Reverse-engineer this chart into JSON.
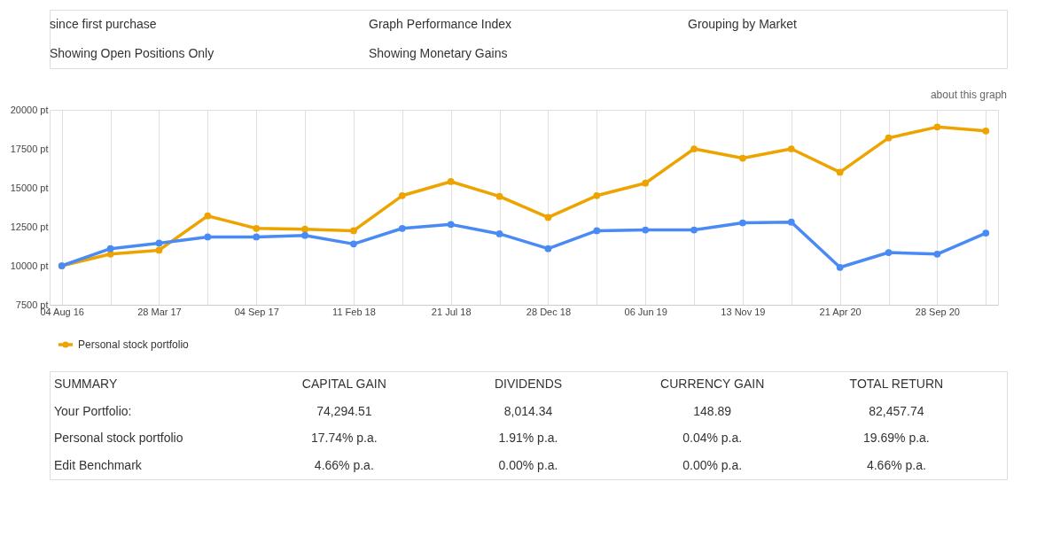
{
  "chart_data": [
    {
      "type": "other",
      "annotations": [
        "since first purchase",
        "Graph Performance Index",
        "Grouping by Market",
        "Showing Open Positions Only",
        "Showing Monetary Gains"
      ]
    },
    {
      "type": "line",
      "categories": [
        "04 Aug 16",
        null,
        "28 Mar 17",
        null,
        "04 Sep 17",
        null,
        "11 Feb 18",
        null,
        "21 Jul 18",
        null,
        "28 Dec 18",
        null,
        "06 Jun 19",
        null,
        "13 Nov 19",
        null,
        "21 Apr 20",
        null,
        "28 Sep 20",
        null
      ],
      "series": [
        {
          "name": "Personal stock portfolio",
          "color": "#eea400",
          "values": [
            10000,
            10750,
            11000,
            13200,
            12400,
            12350,
            12250,
            14500,
            15400,
            14450,
            13100,
            14500,
            15300,
            17500,
            16900,
            17500,
            16000,
            18200,
            18900,
            18650
          ]
        },
        {
          "color": "#4a8af4",
          "values": [
            10000,
            11100,
            11450,
            11850,
            11850,
            11950,
            11400,
            12400,
            12650,
            12050,
            11100,
            12250,
            12300,
            12300,
            12750,
            12800,
            9900,
            10850,
            10750,
            12100
          ]
        }
      ],
      "ylim": [
        7500,
        20000
      ],
      "yticks": [
        {
          "value": 7500,
          "label": "7500 pt"
        },
        {
          "value": 10000,
          "label": "10000 pt"
        },
        {
          "value": 12500,
          "label": "12500 pt"
        },
        {
          "value": 15000,
          "label": "15000 pt"
        },
        {
          "value": 17500,
          "label": "17500 pt"
        },
        {
          "value": 20000,
          "label": "20000 pt"
        }
      ],
      "grid": "x",
      "legend": "bottom",
      "marker": "circle",
      "line_style": "solid",
      "annotations": [
        "about this graph"
      ]
    },
    {
      "type": "other",
      "annotations": [
        "SUMMARY",
        "CAPITAL GAIN",
        "DIVIDENDS",
        "CURRENCY GAIN",
        "TOTAL RETURN",
        "Your Portfolio:",
        "74,294.51",
        "8,014.34",
        "148.89",
        "82,457.74",
        "Personal stock portfolio",
        "17.74% p.a.",
        "1.91% p.a.",
        "0.04% p.a.",
        "19.69% p.a.",
        "Edit Benchmark",
        "4.66% p.a.",
        "0.00% p.a.",
        "0.00% p.a.",
        "4.66% p.a."
      ]
    }
  ]
}
